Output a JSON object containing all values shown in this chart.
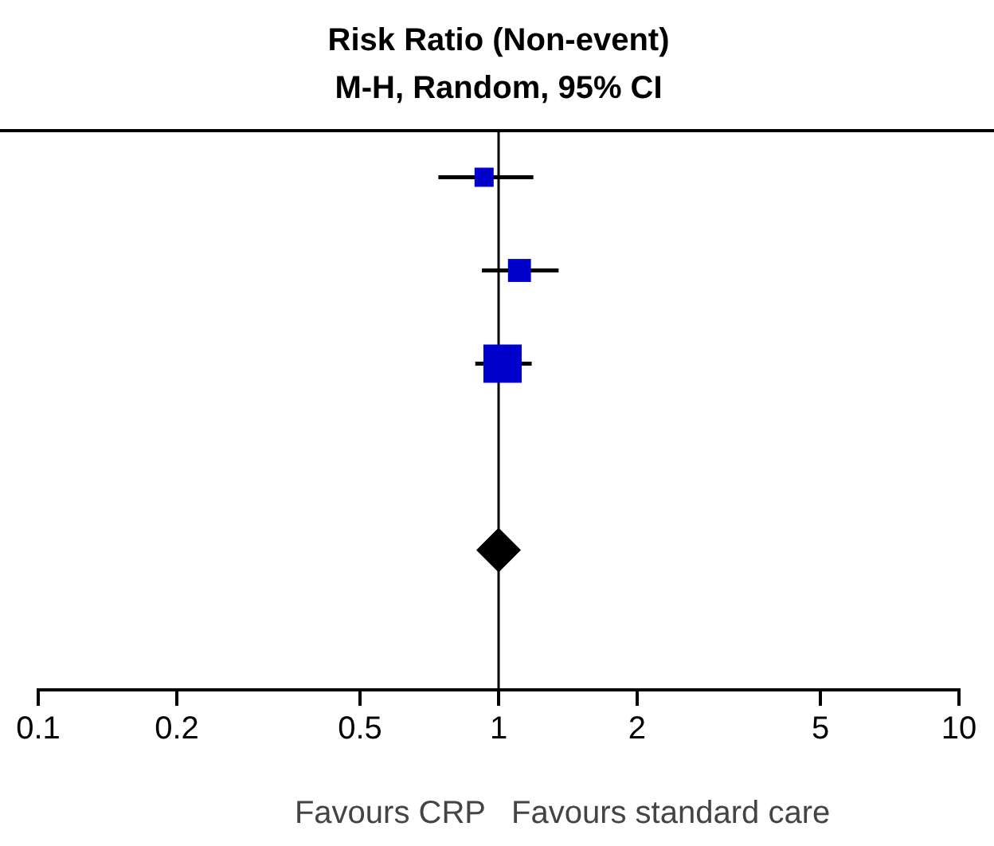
{
  "chart_data": {
    "type": "scatter",
    "title": "Risk Ratio (Non-event)",
    "subtitle": "M-H, Random, 95% CI",
    "orientation": "horizontal",
    "categories": [
      null,
      null,
      null,
      null,
      null,
      null
    ],
    "log": "x",
    "xlim": [
      0.1,
      10
    ],
    "xticks": [
      0.1,
      0.2,
      0.5,
      1,
      2,
      5,
      10
    ],
    "grid": false,
    "legend": false,
    "tick_labels": "x",
    "series": [
      {
        "type": "bubble",
        "marker": "square",
        "color": "#0000cc",
        "values": [
          0.93,
          1.11,
          1.02,
          null,
          null,
          null
        ],
        "sizes": [
          0.25,
          0.36,
          1,
          null,
          null,
          null
        ],
        "errors": [
          [
            0.74,
            1.19
          ],
          [
            0.92,
            1.35
          ],
          [
            0.89,
            1.18
          ],
          null,
          null,
          null
        ]
      },
      {
        "type": "scatter",
        "marker": "diamond",
        "color": "#000000",
        "values": [
          null,
          null,
          null,
          null,
          1.0,
          null
        ]
      }
    ],
    "ref_lines": [
      {
        "axis": "x",
        "value": 1,
        "color": "#000000"
      }
    ],
    "annotations": [
      "Favours CRP",
      "Favours standard care"
    ]
  }
}
